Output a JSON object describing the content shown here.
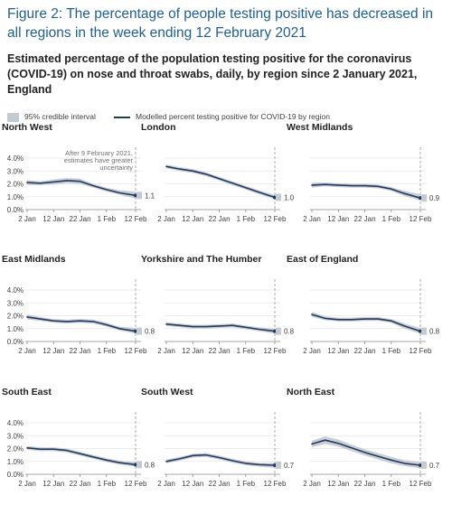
{
  "title": "Figure 2: The percentage of people testing positive has decreased in all regions in the week ending 12 February 2021",
  "subtitle": "Estimated percentage of the population testing positive for the coronavirus (COVID-19) on nose and throat swabs, daily, by region since 2 January 2021, England",
  "legend": {
    "interval_label": "95% credible interval",
    "line_label": "Modelled percent testing positive for COVID-19 by region"
  },
  "colors": {
    "line": "#1f3b63",
    "interval": "#c5cad0",
    "title": "#206095"
  },
  "chart_data": {
    "type": "line",
    "x_ticks": [
      "2 Jan",
      "12 Jan",
      "22 Jan",
      "1 Feb",
      "12 Feb"
    ],
    "y_ticks": [
      "0.0%",
      "1.0%",
      "2.0%",
      "3.0%",
      "4.0%"
    ],
    "ylim": [
      0,
      4
    ],
    "x": [
      "2021-01-02",
      "2021-01-07",
      "2021-01-12",
      "2021-01-17",
      "2021-01-22",
      "2021-01-27",
      "2021-02-01",
      "2021-02-06",
      "2021-02-12"
    ],
    "panels": [
      {
        "region": "North West",
        "end_label": "1.1",
        "values": [
          2.1,
          2.05,
          2.15,
          2.25,
          2.2,
          1.85,
          1.55,
          1.3,
          1.1
        ],
        "lower": [
          1.9,
          1.9,
          1.95,
          2.05,
          2.0,
          1.7,
          1.4,
          1.15,
          0.85
        ],
        "upper": [
          2.3,
          2.2,
          2.35,
          2.45,
          2.4,
          2.0,
          1.7,
          1.5,
          1.4
        ],
        "annotation": [
          "After 9 February 2021,",
          "estimates have greater",
          "uncertainty"
        ]
      },
      {
        "region": "London",
        "end_label": "1.0",
        "values": [
          3.35,
          3.15,
          3.0,
          2.75,
          2.4,
          2.05,
          1.7,
          1.35,
          0.95
        ],
        "lower": [
          3.2,
          3.0,
          2.85,
          2.6,
          2.25,
          1.9,
          1.55,
          1.2,
          0.8
        ],
        "upper": [
          3.5,
          3.3,
          3.15,
          2.9,
          2.55,
          2.2,
          1.85,
          1.5,
          1.15
        ]
      },
      {
        "region": "West Midlands",
        "end_label": "0.9",
        "values": [
          1.9,
          1.95,
          1.9,
          1.85,
          1.85,
          1.8,
          1.6,
          1.25,
          0.9
        ],
        "lower": [
          1.7,
          1.8,
          1.75,
          1.7,
          1.7,
          1.65,
          1.45,
          1.05,
          0.7
        ],
        "upper": [
          2.1,
          2.1,
          2.05,
          2.0,
          2.0,
          1.95,
          1.75,
          1.45,
          1.2
        ]
      },
      {
        "region": "East Midlands",
        "end_label": "0.8",
        "values": [
          1.9,
          1.75,
          1.6,
          1.55,
          1.6,
          1.55,
          1.3,
          1.0,
          0.8
        ],
        "lower": [
          1.7,
          1.6,
          1.45,
          1.4,
          1.45,
          1.4,
          1.15,
          0.85,
          0.6
        ],
        "upper": [
          2.1,
          1.9,
          1.75,
          1.7,
          1.75,
          1.7,
          1.45,
          1.15,
          1.05
        ]
      },
      {
        "region": "Yorkshire and The Humber",
        "end_label": "0.8",
        "values": [
          1.35,
          1.25,
          1.15,
          1.15,
          1.2,
          1.25,
          1.1,
          0.95,
          0.8
        ],
        "lower": [
          1.2,
          1.1,
          1.0,
          1.0,
          1.05,
          1.1,
          0.95,
          0.8,
          0.6
        ],
        "upper": [
          1.5,
          1.4,
          1.3,
          1.3,
          1.35,
          1.4,
          1.25,
          1.1,
          1.0
        ]
      },
      {
        "region": "East of England",
        "end_label": "0.8",
        "values": [
          2.1,
          1.8,
          1.7,
          1.7,
          1.75,
          1.75,
          1.6,
          1.2,
          0.8
        ],
        "lower": [
          1.9,
          1.65,
          1.55,
          1.55,
          1.6,
          1.6,
          1.45,
          1.0,
          0.6
        ],
        "upper": [
          2.3,
          1.95,
          1.85,
          1.85,
          1.9,
          1.9,
          1.75,
          1.4,
          1.05
        ]
      },
      {
        "region": "South East",
        "end_label": "0.8",
        "values": [
          2.05,
          1.95,
          1.95,
          1.85,
          1.6,
          1.35,
          1.1,
          0.9,
          0.75
        ],
        "lower": [
          1.9,
          1.8,
          1.8,
          1.7,
          1.45,
          1.2,
          0.95,
          0.75,
          0.6
        ],
        "upper": [
          2.2,
          2.1,
          2.1,
          2.0,
          1.75,
          1.5,
          1.25,
          1.05,
          0.95
        ]
      },
      {
        "region": "South West",
        "end_label": "0.7",
        "values": [
          1.0,
          1.2,
          1.45,
          1.5,
          1.3,
          1.05,
          0.85,
          0.75,
          0.7
        ],
        "lower": [
          0.85,
          1.05,
          1.3,
          1.35,
          1.15,
          0.9,
          0.7,
          0.6,
          0.5
        ],
        "upper": [
          1.15,
          1.35,
          1.6,
          1.65,
          1.45,
          1.2,
          1.0,
          0.9,
          0.9
        ]
      },
      {
        "region": "North East",
        "end_label": "0.7",
        "values": [
          2.35,
          2.65,
          2.4,
          2.05,
          1.7,
          1.4,
          1.1,
          0.85,
          0.7
        ],
        "lower": [
          2.1,
          2.35,
          2.15,
          1.8,
          1.45,
          1.15,
          0.85,
          0.65,
          0.45
        ],
        "upper": [
          2.6,
          2.95,
          2.7,
          2.3,
          1.95,
          1.65,
          1.35,
          1.1,
          0.95
        ]
      }
    ]
  }
}
